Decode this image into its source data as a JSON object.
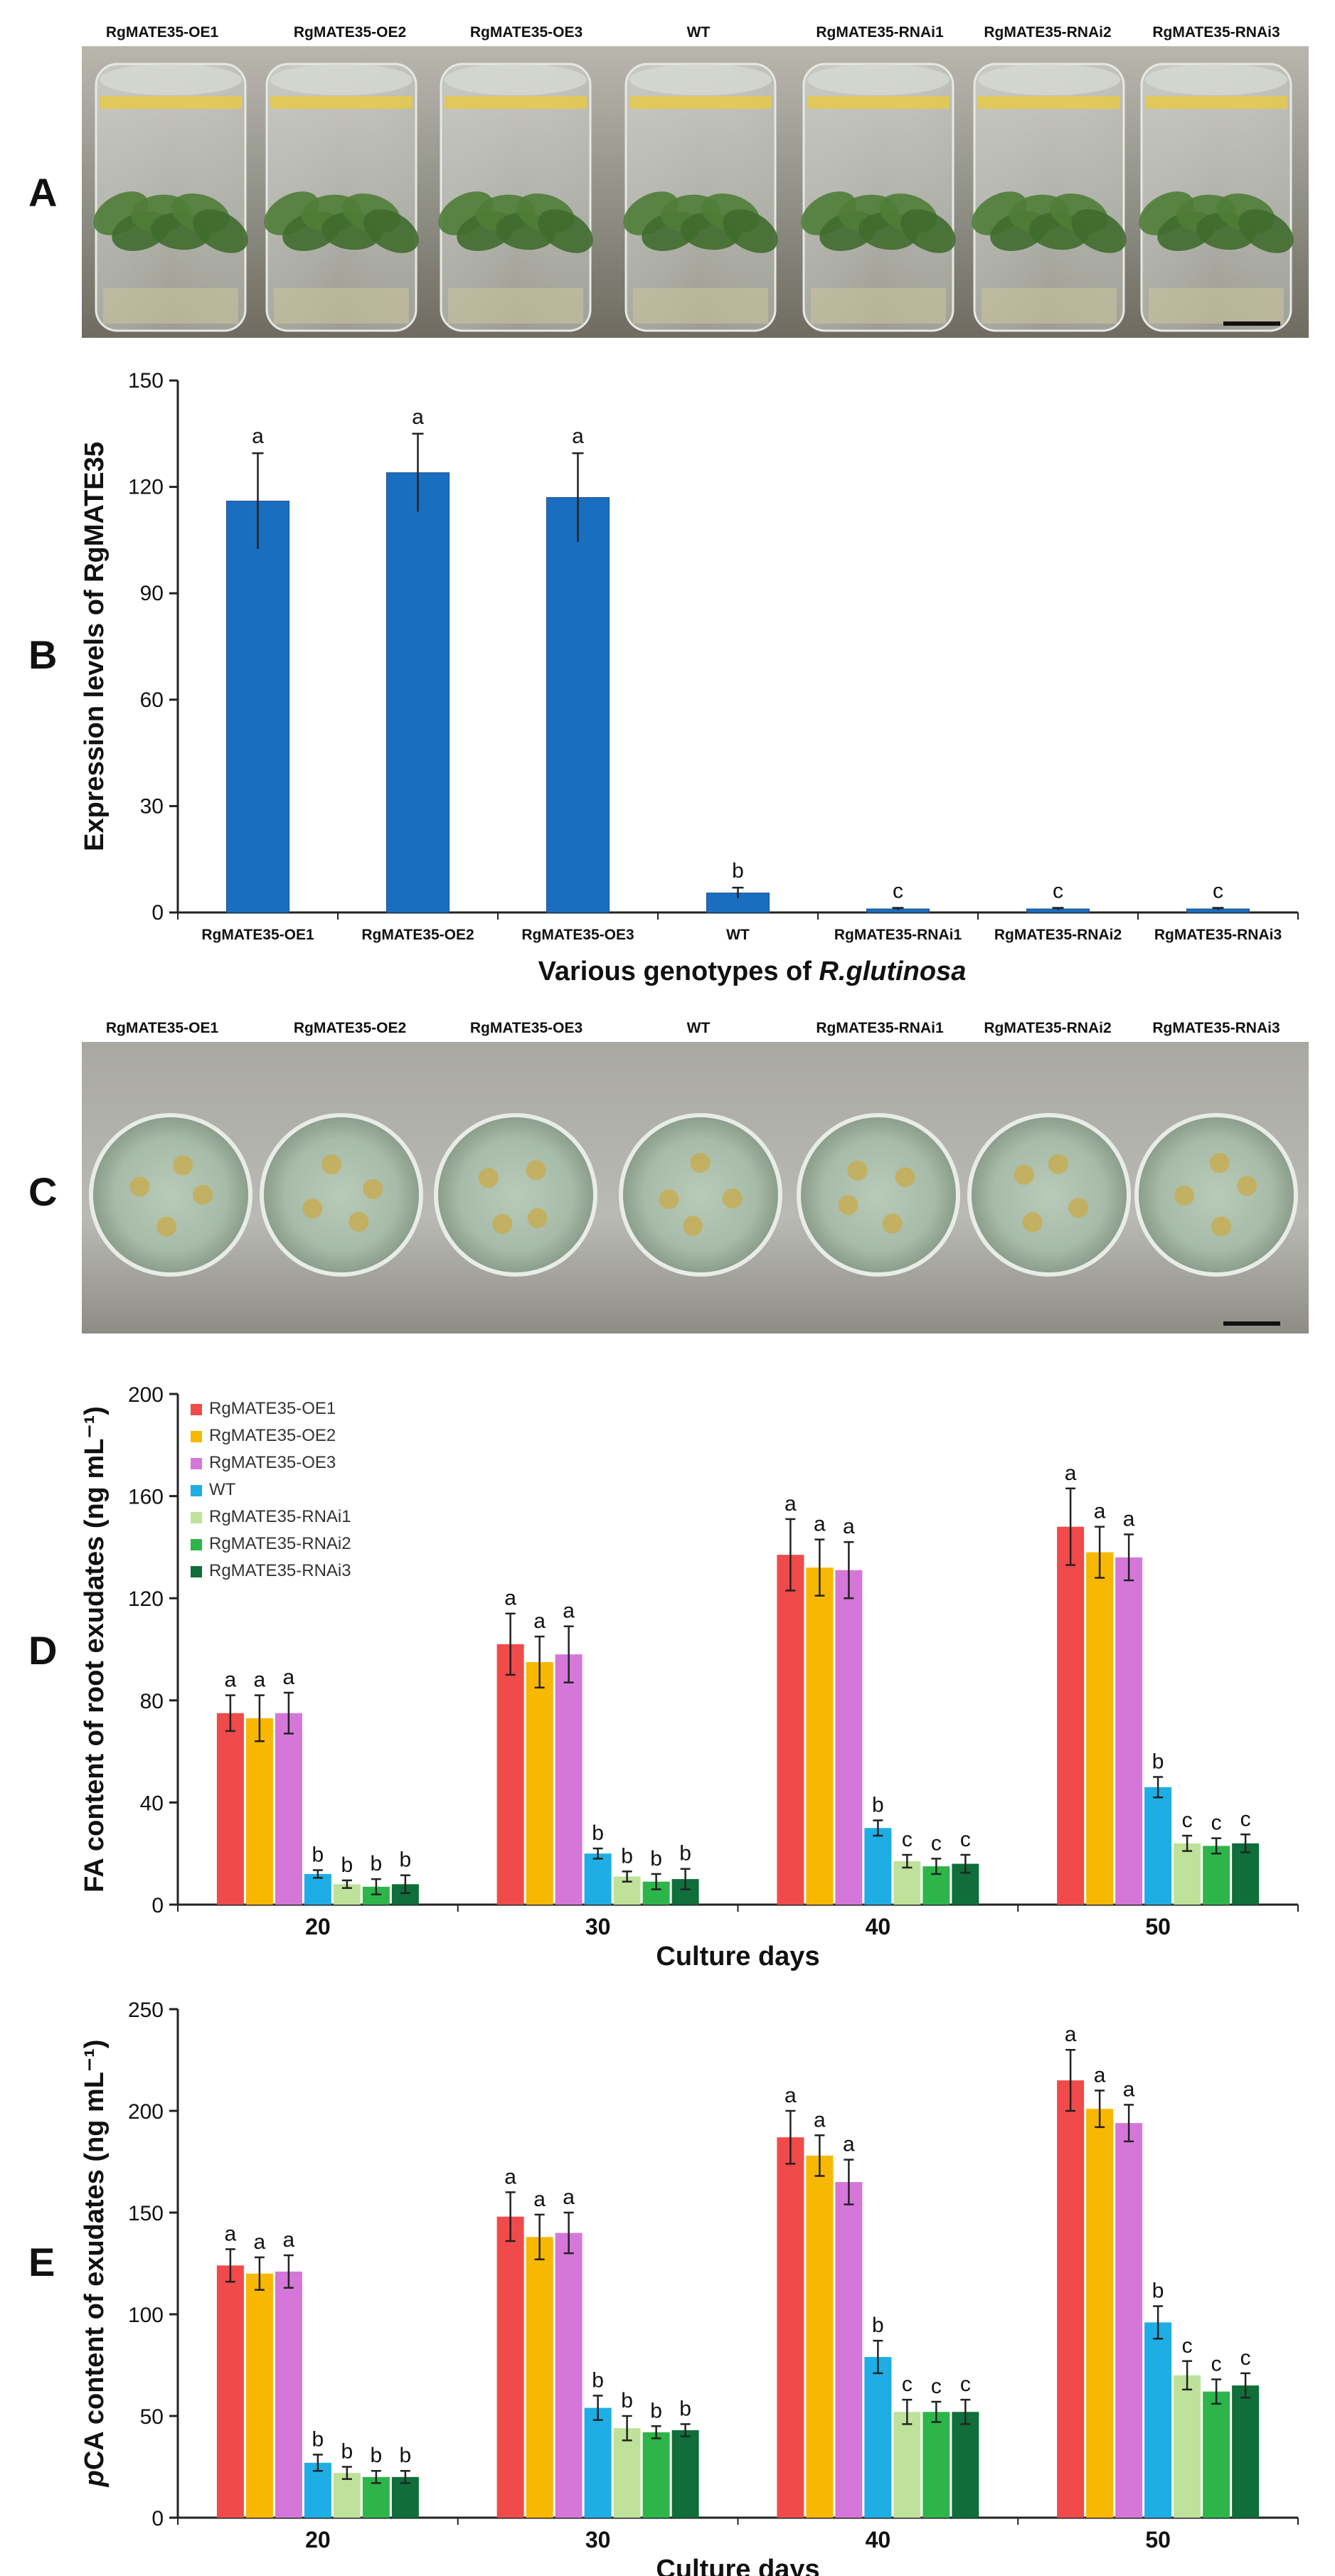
{
  "panels": {
    "a": "A",
    "b": "B",
    "c": "C",
    "d": "D",
    "e": "E"
  },
  "photo_labels": [
    "RgMATE35-OE1",
    "RgMATE35-OE2",
    "RgMATE35-OE3",
    "WT",
    "RgMATE35-RNAi1",
    "RgMATE35-RNAi2",
    "RgMATE35-RNAi3"
  ],
  "colors": {
    "oe1": "#f04a4a",
    "oe2": "#f9b800",
    "oe3": "#d577d8",
    "wt": "#1eaee5",
    "rnai1": "#bfe29a",
    "rnai2": "#2db54a",
    "rnai3": "#0f6e3a",
    "bar_b": "#1a6ec0"
  },
  "chart_data": [
    {
      "type": "bar",
      "panel": "B",
      "categories": [
        "RgMATE35-OE1",
        "RgMATE35-OE2",
        "RgMATE35-OE3",
        "WT",
        "RgMATE35-RNAi1",
        "RgMATE35-RNAi2",
        "RgMATE35-RNAi3"
      ],
      "values": [
        116,
        124,
        117,
        5.5,
        1,
        1,
        1
      ],
      "errors": [
        13.5,
        11,
        12.5,
        1.5,
        0.3,
        0.3,
        0.3
      ],
      "letters": [
        "a",
        "a",
        "a",
        "b",
        "c",
        "c",
        "c"
      ],
      "xlabel_prefix": "Various genotypes of ",
      "xlabel_italic": "R.glutinosa",
      "ylabel": "Expression levels of RgMATE35",
      "ylim": [
        0,
        150
      ],
      "yticks": [
        0,
        30,
        60,
        90,
        120,
        150
      ]
    },
    {
      "type": "bar",
      "panel": "D",
      "categories": [
        "20",
        "30",
        "40",
        "50"
      ],
      "series": [
        {
          "name": "RgMATE35-OE1",
          "values": [
            75,
            102,
            137,
            148
          ],
          "errors": [
            7,
            12,
            14,
            15
          ],
          "letters": [
            "a",
            "a",
            "a",
            "a"
          ]
        },
        {
          "name": "RgMATE35-OE2",
          "values": [
            73,
            95,
            132,
            138
          ],
          "errors": [
            9,
            10,
            11,
            10
          ],
          "letters": [
            "a",
            "a",
            "a",
            "a"
          ]
        },
        {
          "name": "RgMATE35-OE3",
          "values": [
            75,
            98,
            131,
            136
          ],
          "errors": [
            8,
            11,
            11,
            9
          ],
          "letters": [
            "a",
            "a",
            "a",
            "a"
          ]
        },
        {
          "name": "WT",
          "values": [
            12,
            20,
            30,
            46
          ],
          "errors": [
            1.5,
            2,
            3,
            4
          ],
          "letters": [
            "b",
            "b",
            "b",
            "b"
          ]
        },
        {
          "name": "RgMATE35-RNAi1",
          "values": [
            8,
            11,
            17,
            24
          ],
          "errors": [
            1.5,
            2,
            2.5,
            3
          ],
          "letters": [
            "b",
            "b",
            "c",
            "c"
          ]
        },
        {
          "name": "RgMATE35-RNAi2",
          "values": [
            7,
            9,
            15,
            23
          ],
          "errors": [
            3,
            3,
            3,
            3
          ],
          "letters": [
            "b",
            "b",
            "c",
            "c"
          ]
        },
        {
          "name": "RgMATE35-RNAi3",
          "values": [
            8,
            10,
            16,
            24
          ],
          "errors": [
            3.5,
            4,
            3.5,
            3.5
          ],
          "letters": [
            "b",
            "b",
            "c",
            "c"
          ]
        }
      ],
      "xlabel": "Culture days",
      "ylabel": "FA content of root exudates (ng mL⁻¹)",
      "ylim": [
        0,
        200
      ],
      "yticks": [
        0,
        40,
        80,
        120,
        160,
        200
      ],
      "legend": "top-left"
    },
    {
      "type": "bar",
      "panel": "E",
      "categories": [
        "20",
        "30",
        "40",
        "50"
      ],
      "series": [
        {
          "name": "RgMATE35-OE1",
          "values": [
            124,
            148,
            187,
            215
          ],
          "errors": [
            8,
            12,
            13,
            15
          ],
          "letters": [
            "a",
            "a",
            "a",
            "a"
          ]
        },
        {
          "name": "RgMATE35-OE2",
          "values": [
            120,
            138,
            178,
            201
          ],
          "errors": [
            8,
            11,
            10,
            9
          ],
          "letters": [
            "a",
            "a",
            "a",
            "a"
          ]
        },
        {
          "name": "RgMATE35-OE3",
          "values": [
            121,
            140,
            165,
            194
          ],
          "errors": [
            8,
            10,
            11,
            9
          ],
          "letters": [
            "a",
            "a",
            "a",
            "a"
          ]
        },
        {
          "name": "WT",
          "values": [
            27,
            54,
            79,
            96
          ],
          "errors": [
            4,
            6,
            8,
            8
          ],
          "letters": [
            "b",
            "b",
            "b",
            "b"
          ]
        },
        {
          "name": "RgMATE35-RNAi1",
          "values": [
            22,
            44,
            52,
            70
          ],
          "errors": [
            3,
            6,
            6,
            7
          ],
          "letters": [
            "b",
            "b",
            "c",
            "c"
          ]
        },
        {
          "name": "RgMATE35-RNAi2",
          "values": [
            20,
            42,
            52,
            62
          ],
          "errors": [
            3,
            3,
            5,
            6
          ],
          "letters": [
            "b",
            "b",
            "c",
            "c"
          ]
        },
        {
          "name": "RgMATE35-RNAi3",
          "values": [
            20,
            43,
            52,
            65
          ],
          "errors": [
            3,
            3,
            6,
            6
          ],
          "letters": [
            "b",
            "b",
            "c",
            "c"
          ]
        }
      ],
      "xlabel": "Culture days",
      "ylabel_italic": "p",
      "ylabel_rest": "CA content of exudates (ng mL⁻¹)",
      "ylim": [
        0,
        250
      ],
      "yticks": [
        0,
        50,
        100,
        150,
        200,
        250
      ]
    }
  ]
}
